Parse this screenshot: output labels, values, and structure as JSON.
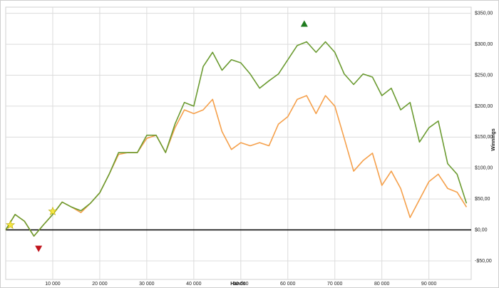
{
  "chart_data": {
    "type": "line",
    "x_label": "Hands",
    "y_label": "Winnings",
    "x": [
      0,
      2000,
      4000,
      6000,
      8000,
      10000,
      12000,
      14000,
      16000,
      18000,
      20000,
      22000,
      24000,
      26000,
      28000,
      30000,
      32000,
      34000,
      36000,
      38000,
      40000,
      42000,
      44000,
      46000,
      48000,
      50000,
      52000,
      54000,
      56000,
      58000,
      60000,
      62000,
      64000,
      66000,
      68000,
      70000,
      72000,
      74000,
      76000,
      78000,
      80000,
      82000,
      84000,
      86000,
      88000,
      90000,
      92000,
      94000,
      96000,
      98000
    ],
    "series": [
      {
        "color": "#6b9b31",
        "values": [
          0,
          25,
          14,
          -10,
          8,
          25,
          45,
          37,
          31,
          43,
          60,
          90,
          125,
          125,
          125,
          153,
          153,
          125,
          171,
          206,
          200,
          264,
          287,
          258,
          275,
          270,
          252,
          229,
          241,
          252,
          275,
          298,
          304,
          287,
          304,
          287,
          252,
          235,
          252,
          247,
          217,
          229,
          194,
          206,
          142,
          165,
          176,
          107,
          90,
          43
        ]
      },
      {
        "color": "#f5a04b",
        "values": [
          0,
          25,
          14,
          -10,
          8,
          25,
          45,
          37,
          28,
          43,
          60,
          90,
          122,
          125,
          125,
          148,
          153,
          125,
          165,
          194,
          188,
          194,
          211,
          159,
          130,
          141,
          136,
          141,
          136,
          171,
          183,
          211,
          217,
          188,
          217,
          200,
          148,
          95,
          112,
          124,
          72,
          95,
          67,
          20,
          49,
          78,
          90,
          67,
          61,
          37
        ]
      }
    ],
    "max_marker": {
      "x": 63500,
      "y": 333,
      "color": "#1e7b1e"
    },
    "min_marker": {
      "x": 7000,
      "y": -30,
      "color": "#c0141c"
    },
    "stars": [
      {
        "x": 1000,
        "y": 8
      },
      {
        "x": 10000,
        "y": 30
      }
    ],
    "star_color": "#f5e642",
    "xlim": [
      0,
      99000
    ],
    "xticks": [
      {
        "value": 10000,
        "label": "10 000"
      },
      {
        "value": 20000,
        "label": "20 000"
      },
      {
        "value": 30000,
        "label": "30 000"
      },
      {
        "value": 40000,
        "label": "40 000"
      },
      {
        "value": 50000,
        "label": "50 000"
      },
      {
        "value": 60000,
        "label": "60 000"
      },
      {
        "value": 70000,
        "label": "70 000"
      },
      {
        "value": 80000,
        "label": "80 000"
      },
      {
        "value": 90000,
        "label": "90 000"
      }
    ],
    "ylim": [
      -80,
      360
    ],
    "yticks": [
      {
        "value": -50,
        "label": "-$50,00"
      },
      {
        "value": 0,
        "label": "$0,00"
      },
      {
        "value": 50,
        "label": "$50,00"
      },
      {
        "value": 100,
        "label": "$100,00"
      },
      {
        "value": 150,
        "label": "$150,00"
      },
      {
        "value": 200,
        "label": "$200,00"
      },
      {
        "value": 250,
        "label": "$250,00"
      },
      {
        "value": 300,
        "label": "$300,00"
      },
      {
        "value": 350,
        "label": "$350,00"
      }
    ],
    "grid": true
  }
}
